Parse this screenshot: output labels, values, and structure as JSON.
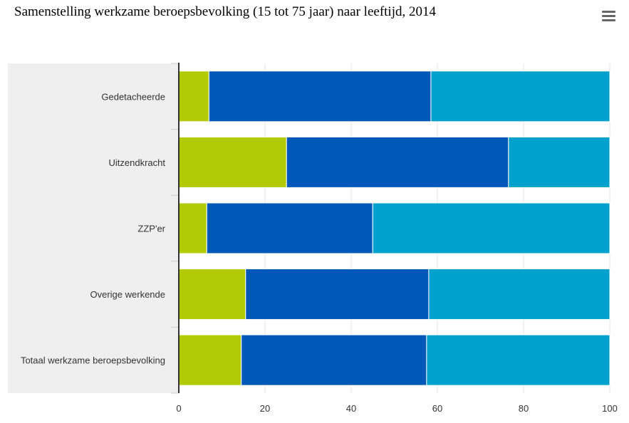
{
  "title": "Samenstelling werkzame beroepsbevolking (15 tot 75 jaar) naar leeftijd, 2014",
  "menu_icon": "hamburger-menu-icon",
  "colors": {
    "series": [
      "#b2cb05",
      "#0058b8",
      "#00a1cd"
    ],
    "band": "#efefef",
    "grid": "#e6e6e6",
    "axis": "#333333"
  },
  "chart_data": {
    "type": "bar",
    "orientation": "horizontal",
    "stacked": true,
    "categories": [
      "Gedetacheerde",
      "Uitzendkracht",
      "ZZP'er",
      "Overige werkende",
      "Totaal werkzame beroepsbevolking"
    ],
    "series": [
      {
        "values": [
          7,
          25,
          6.5,
          15.5,
          14.5
        ]
      },
      {
        "values": [
          51.5,
          51.5,
          38.5,
          42.5,
          43
        ]
      },
      {
        "values": [
          41.5,
          23.5,
          55,
          42,
          42.5
        ]
      }
    ],
    "xlim": [
      0,
      100
    ],
    "xticks": [
      0,
      20,
      40,
      60,
      80,
      100
    ],
    "title": "Samenstelling werkzame beroepsbevolking (15 tot 75 jaar) naar leeftijd, 2014",
    "xlabel": "",
    "ylabel": "",
    "grid": true,
    "legend": "none"
  }
}
